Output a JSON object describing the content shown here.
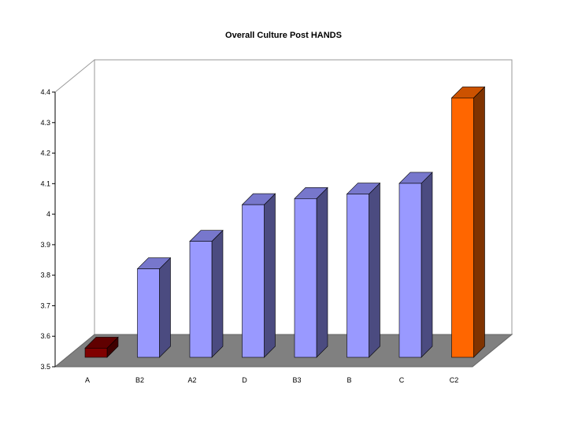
{
  "chart_data": {
    "type": "bar",
    "title": "Overall Culture Post HANDS",
    "xlabel": "",
    "ylabel": "",
    "categories": [
      "A",
      "B2",
      "A2",
      "D",
      "B3",
      "B",
      "C",
      "C2"
    ],
    "values": [
      3.53,
      3.79,
      3.88,
      4.0,
      4.02,
      4.035,
      4.07,
      4.35
    ],
    "ylim": [
      3.5,
      4.4
    ],
    "yticks": [
      "3.5",
      "3.6",
      "3.7",
      "3.8",
      "3.9",
      "4",
      "4.1",
      "4.2",
      "4.3",
      "4.4"
    ],
    "grid": false,
    "legend": "none",
    "colors": {
      "default_front": "#9999ff",
      "default_side": "#4b4b80",
      "default_top": "#7777cc",
      "lowest_front": "#800000",
      "lowest_side": "#400000",
      "lowest_top": "#600000",
      "highest_front": "#ff6600",
      "highest_side": "#7f3300",
      "highest_top": "#cc5200",
      "floor": "#808080"
    }
  }
}
